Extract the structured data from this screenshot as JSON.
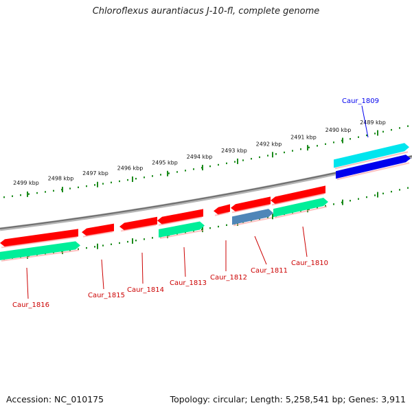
{
  "title": "Chloroflexus aurantiacus J-10-fl, complete genome",
  "footer": {
    "accession": "Accession: NC_010175",
    "summary": "Topology: circular; Length: 5,258,541 bp; Genes: 3,911"
  },
  "colors": {
    "backbone": "#8a8a8a",
    "ruler": "#1a8a1a",
    "gene_red": "#ff0000",
    "gene_red_label": "#cc0000",
    "gene_blue": "#0000ee",
    "gene_cyan": "#00e5ee",
    "gene_green": "#00ee99",
    "gene_steel": "#4f86b8"
  },
  "kbp_labels": [
    {
      "text": "2499 kbp",
      "kbp": 2499
    },
    {
      "text": "2498 kbp",
      "kbp": 2498
    },
    {
      "text": "2497 kbp",
      "kbp": 2497
    },
    {
      "text": "2496 kbp",
      "kbp": 2496
    },
    {
      "text": "2495 kbp",
      "kbp": 2495
    },
    {
      "text": "2494 kbp",
      "kbp": 2494
    },
    {
      "text": "2493 kbp",
      "kbp": 2493
    },
    {
      "text": "2492 kbp",
      "kbp": 2492
    },
    {
      "text": "2491 kbp",
      "kbp": 2491
    },
    {
      "text": "2490 kbp",
      "kbp": 2490
    },
    {
      "text": "2489 kbp",
      "kbp": 2489
    }
  ],
  "genes": [
    {
      "name": "Caur_1809",
      "color": "blue"
    },
    {
      "name": "Caur_1810",
      "color": "red"
    },
    {
      "name": "Caur_1811",
      "color": "red"
    },
    {
      "name": "Caur_1812",
      "color": "red"
    },
    {
      "name": "Caur_1813",
      "color": "red"
    },
    {
      "name": "Caur_1814",
      "color": "red"
    },
    {
      "name": "Caur_1815",
      "color": "red"
    },
    {
      "name": "Caur_1816",
      "color": "red"
    }
  ]
}
